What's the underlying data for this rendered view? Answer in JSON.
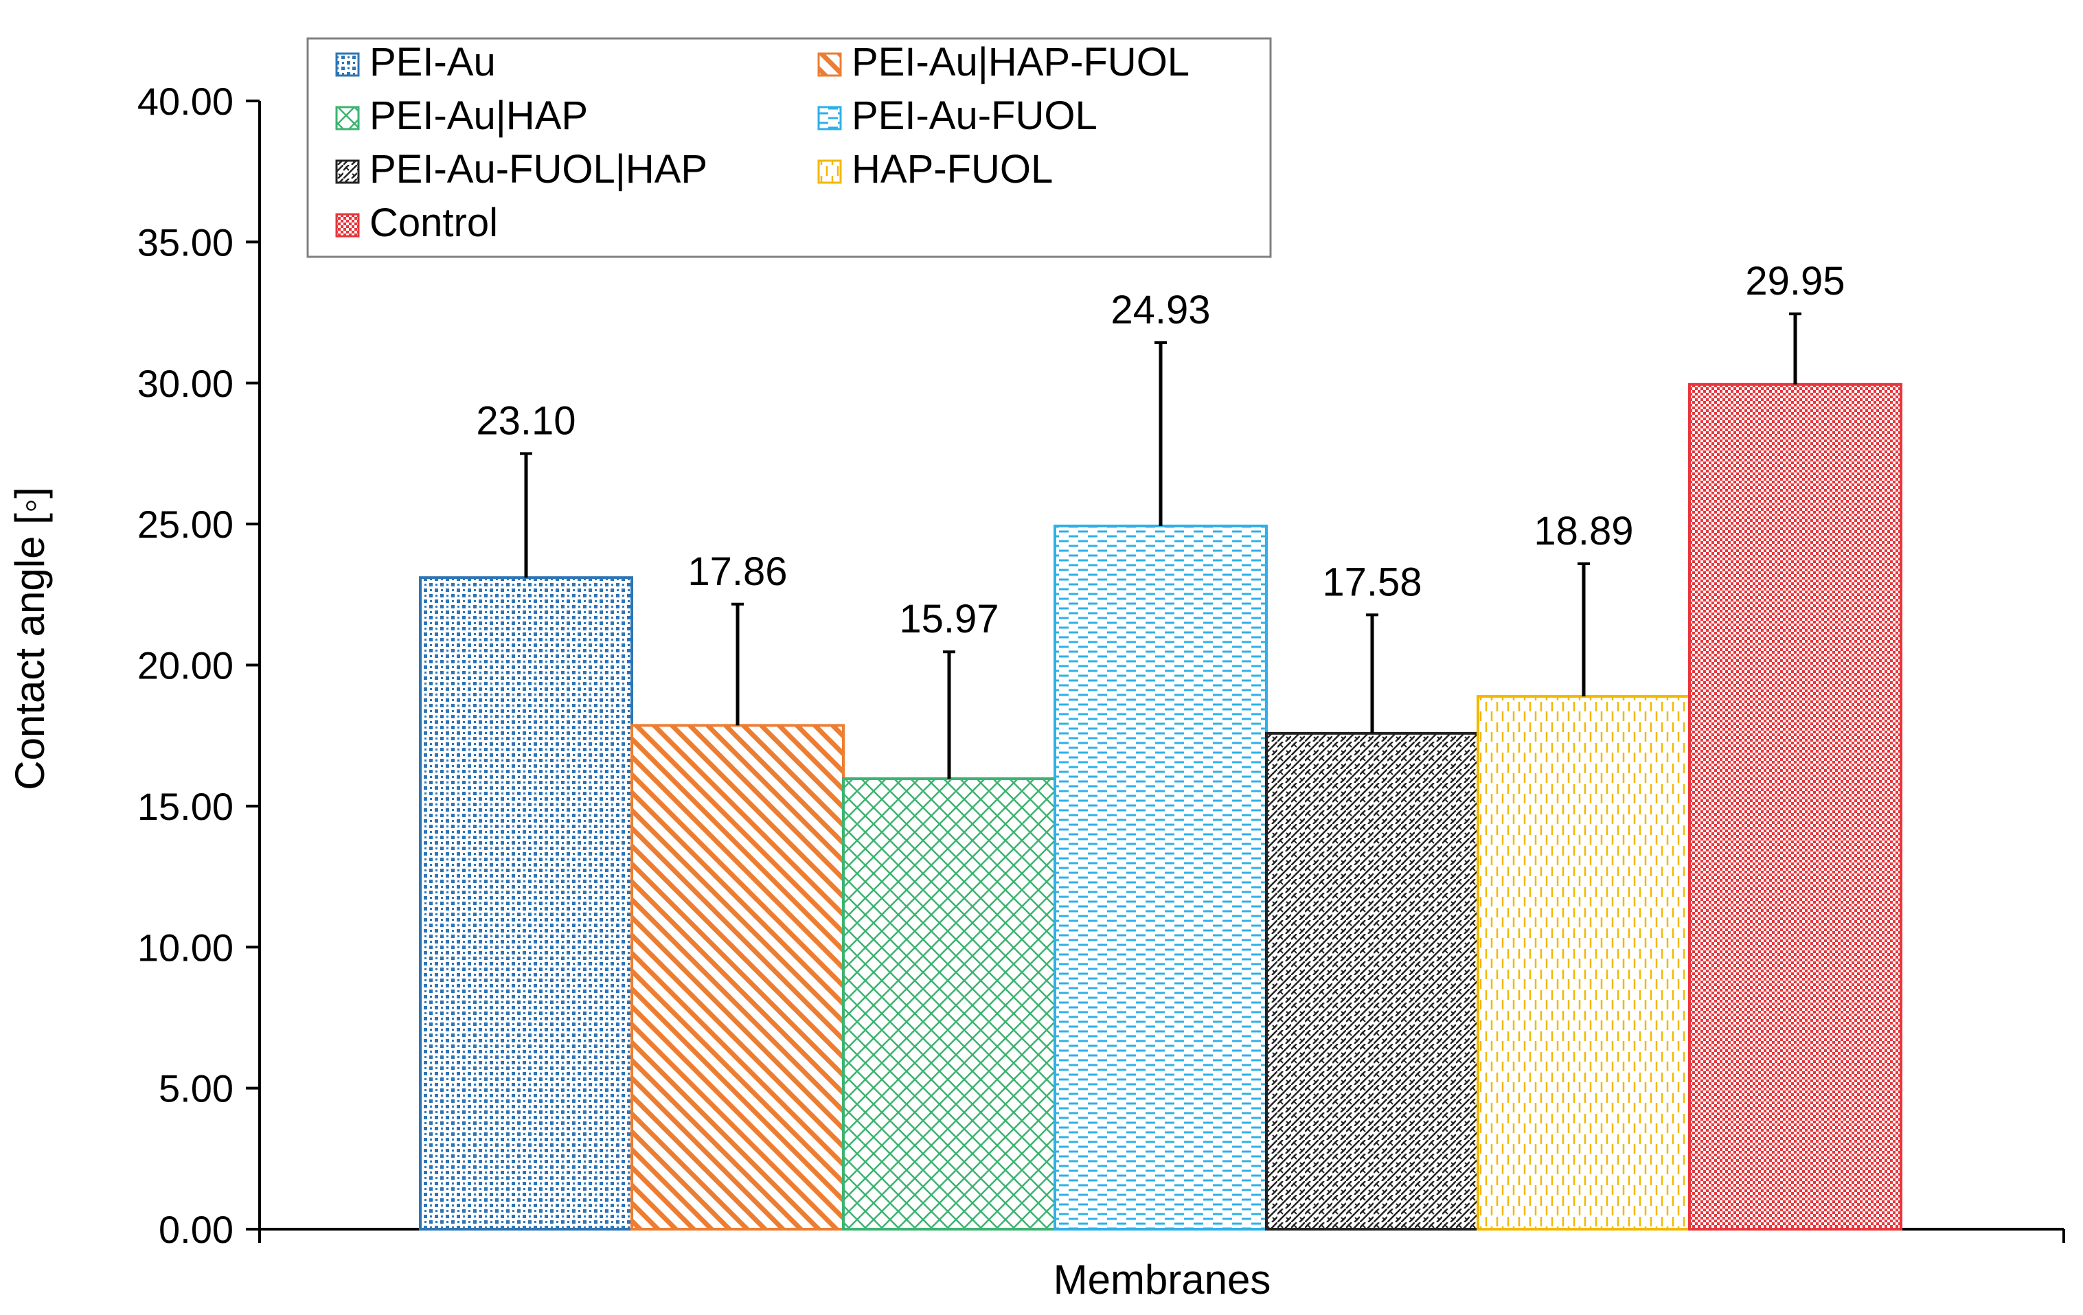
{
  "chart_data": {
    "type": "bar",
    "title": "",
    "xlabel": "Membranes",
    "ylabel": "Contact angle [◦]",
    "ylim": [
      0,
      40
    ],
    "ytick_step": 5,
    "y_ticks": [
      "0.00",
      "5.00",
      "10.00",
      "15.00",
      "20.00",
      "25.00",
      "30.00",
      "35.00",
      "40.00"
    ],
    "grid": false,
    "legend_position": "top-left",
    "series": [
      {
        "name": "PEI-Au",
        "value": 23.1,
        "label": "23.10",
        "error": 4.4,
        "color": "#2E75B6",
        "pattern": "dots"
      },
      {
        "name": "PEI-Au|HAP-FUOL",
        "value": 17.86,
        "label": "17.86",
        "error": 4.3,
        "color": "#ED7D31",
        "pattern": "diagonal-stripes"
      },
      {
        "name": "PEI-Au|HAP",
        "value": 15.97,
        "label": "15.97",
        "error": 4.5,
        "color": "#3CB371",
        "pattern": "crosshatch"
      },
      {
        "name": "PEI-Au-FUOL",
        "value": 24.93,
        "label": "24.93",
        "error": 6.5,
        "color": "#2EB0E8",
        "pattern": "horizontal-dashes"
      },
      {
        "name": "PEI-Au-FUOL|HAP",
        "value": 17.58,
        "label": "17.58",
        "error": 4.2,
        "color": "#222222",
        "pattern": "zigzag"
      },
      {
        "name": "HAP-FUOL",
        "value": 18.89,
        "label": "18.89",
        "error": 4.7,
        "color": "#F2B800",
        "pattern": "vertical-dashes"
      },
      {
        "name": "Control",
        "value": 29.95,
        "label": "29.95",
        "error": 2.5,
        "color": "#E8363C",
        "pattern": "fine-dots"
      }
    ]
  }
}
